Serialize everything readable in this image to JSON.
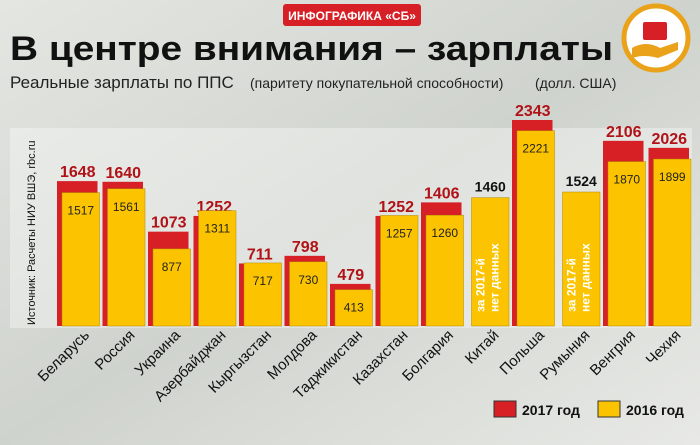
{
  "badge": "ИНФОГРАФИКА «СБ»",
  "chart_data": {
    "type": "bar",
    "title": "В центре внимания – зарплаты",
    "subtitle": "Реальные зарплаты по ППС",
    "subtitle_note": "(паритету покупательной способности)",
    "unit": "(долл. США)",
    "source": "Источник: Расчеты НИУ ВШЭ, rbc.ru",
    "note_lines": [
      "за 2017-й",
      "нет данных"
    ],
    "categories": [
      "Беларусь",
      "Россия",
      "Украина",
      "Азербайджан",
      "Кыргызстан",
      "Молдова",
      "Таджикистан",
      "Казахстан",
      "Болгария",
      "Китай",
      "Польша",
      "Румыния",
      "Венгрия",
      "Чехия"
    ],
    "series": [
      {
        "name": "2017 год",
        "color": "#d71f26",
        "values": [
          1648,
          1640,
          1073,
          1252,
          711,
          798,
          479,
          1252,
          1406,
          null,
          2343,
          null,
          2106,
          2026
        ]
      },
      {
        "name": "2016 год",
        "color": "#fcc400",
        "values": [
          1517,
          1561,
          877,
          1311,
          717,
          730,
          413,
          1257,
          1260,
          1460,
          2221,
          1524,
          1870,
          1899
        ]
      }
    ]
  }
}
